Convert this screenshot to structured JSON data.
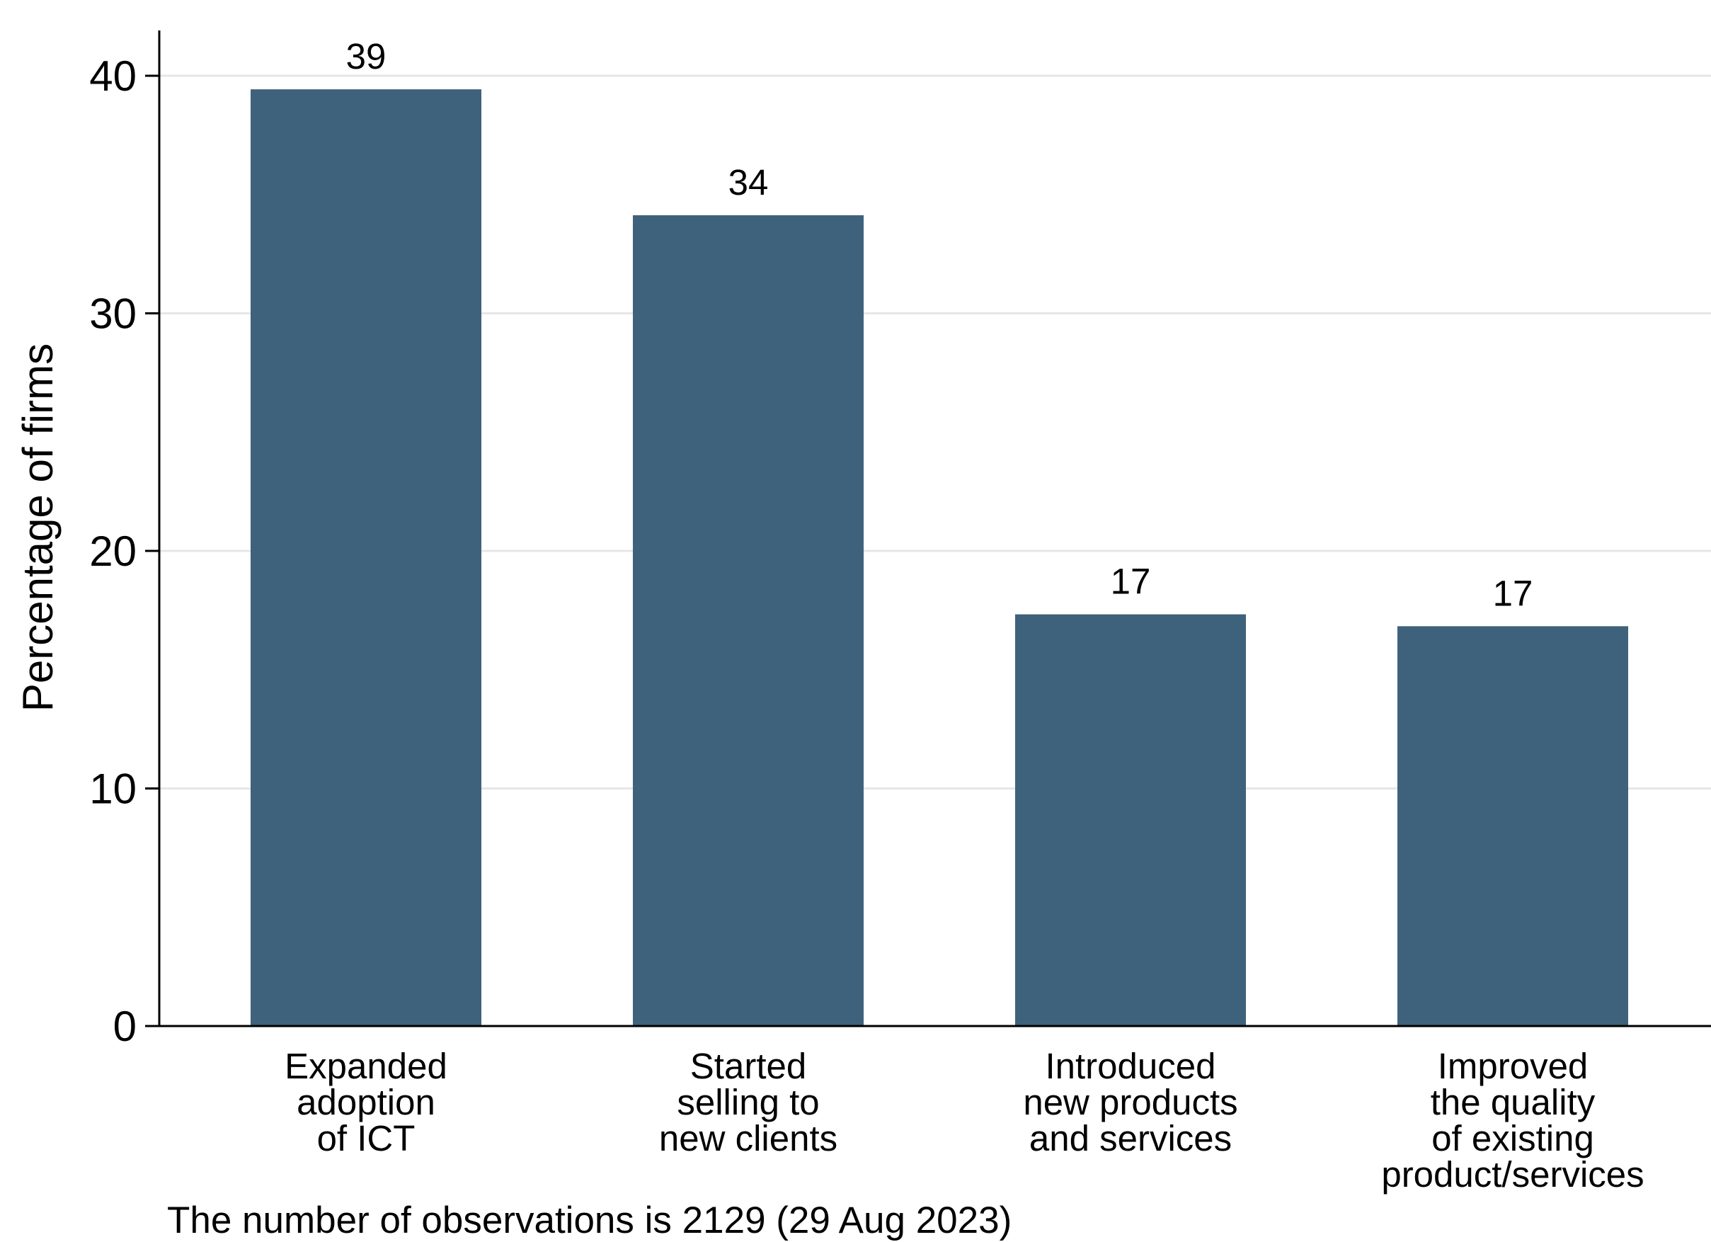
{
  "chart_data": {
    "type": "bar",
    "title": "",
    "xlabel": "",
    "ylabel": "Percentage of firms",
    "ylim": [
      0,
      42
    ],
    "yticks": [
      0,
      10,
      20,
      30,
      40
    ],
    "grid": true,
    "categories": [
      [
        "Expanded",
        "adoption",
        "of ICT"
      ],
      [
        "Started",
        "selling to",
        "new clients"
      ],
      [
        "Introduced",
        "new products",
        "and services"
      ],
      [
        "Improved",
        "the quality",
        "of existing",
        "product/services"
      ]
    ],
    "values": [
      39.4,
      34.1,
      17.3,
      16.8
    ],
    "value_labels": [
      "39",
      "34",
      "17",
      "17"
    ]
  },
  "note": "The number of observations is 2129 (29 Aug 2023)",
  "colors": {
    "bar": "#3f627c",
    "grid": "#e6e6e6",
    "axis": "#000000"
  }
}
